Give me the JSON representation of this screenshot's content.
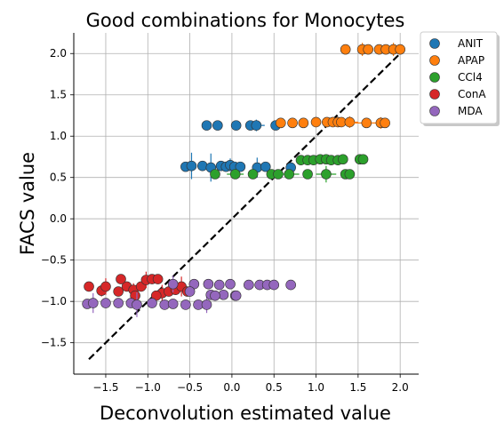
{
  "chart_data": {
    "type": "scatter",
    "title": "Good combinations for Monocytes",
    "xlabel": "Deconvolution estimated value",
    "ylabel": "FACS value",
    "xlim": [
      -1.88,
      2.22
    ],
    "ylim": [
      -1.88,
      2.25
    ],
    "xticks": [
      "−1.5",
      "−1.0",
      "−0.5",
      "0.0",
      "0.5",
      "1.0",
      "1.5",
      "2.0"
    ],
    "xtick_values": [
      -1.5,
      -1.0,
      -0.5,
      0.0,
      0.5,
      1.0,
      1.5,
      2.0
    ],
    "yticks": [
      "−1.5",
      "−1.0",
      "−0.5",
      "0.0",
      "0.5",
      "1.0",
      "1.5",
      "2.0"
    ],
    "ytick_values": [
      -1.5,
      -1.0,
      -0.5,
      0.0,
      0.5,
      1.0,
      1.5,
      2.0
    ],
    "grid": true,
    "legend_position": "outside-top-right",
    "reference_line": {
      "style": "dashed",
      "color": "#000000",
      "from": [
        -1.7,
        -1.7
      ],
      "to": [
        2.05,
        2.05
      ]
    },
    "series": [
      {
        "name": "ANIT",
        "color": "#1f77b4",
        "points": [
          {
            "x": -0.3,
            "y": 1.13,
            "xerr": 0.03,
            "yerr": 0.0
          },
          {
            "x": -0.17,
            "y": 1.13,
            "xerr": 0.04,
            "yerr": 0.05
          },
          {
            "x": 0.05,
            "y": 1.13,
            "xerr": 0.05,
            "yerr": 0.0
          },
          {
            "x": 0.22,
            "y": 1.13,
            "xerr": 0.04,
            "yerr": 0.03
          },
          {
            "x": 0.29,
            "y": 1.13,
            "xerr": 0.1,
            "yerr": 0.07
          },
          {
            "x": 0.52,
            "y": 1.13,
            "xerr": 0.06,
            "yerr": 0.0
          },
          {
            "x": -0.55,
            "y": 0.63,
            "xerr": 0.03,
            "yerr": 0.0
          },
          {
            "x": -0.48,
            "y": 0.64,
            "xerr": 0.04,
            "yerr": 0.16
          },
          {
            "x": -0.35,
            "y": 0.64,
            "xerr": 0.02,
            "yerr": 0.0
          },
          {
            "x": -0.25,
            "y": 0.62,
            "xerr": 0.03,
            "yerr": 0.17
          },
          {
            "x": -0.13,
            "y": 0.64,
            "xerr": 0.05,
            "yerr": 0.0
          },
          {
            "x": -0.07,
            "y": 0.63,
            "xerr": 0.05,
            "yerr": 0.0
          },
          {
            "x": -0.02,
            "y": 0.65,
            "xerr": 0.04,
            "yerr": 0.08
          },
          {
            "x": 0.03,
            "y": 0.63,
            "xerr": 0.04,
            "yerr": 0.0
          },
          {
            "x": 0.1,
            "y": 0.63,
            "xerr": 0.05,
            "yerr": 0.0
          },
          {
            "x": 0.3,
            "y": 0.62,
            "xerr": 0.03,
            "yerr": 0.12
          },
          {
            "x": 0.4,
            "y": 0.63,
            "xerr": 0.02,
            "yerr": 0.0
          },
          {
            "x": 0.7,
            "y": 0.62,
            "xerr": 0.04,
            "yerr": 0.0
          }
        ]
      },
      {
        "name": "APAP",
        "color": "#ff7f0e",
        "points": [
          {
            "x": 1.35,
            "y": 2.05,
            "xerr": 0.02,
            "yerr": 0.0
          },
          {
            "x": 1.55,
            "y": 2.05,
            "xerr": 0.05,
            "yerr": 0.08
          },
          {
            "x": 1.62,
            "y": 2.05,
            "xerr": 0.04,
            "yerr": 0.0
          },
          {
            "x": 1.75,
            "y": 2.05,
            "xerr": 0.05,
            "yerr": 0.05
          },
          {
            "x": 1.83,
            "y": 2.05,
            "xerr": 0.04,
            "yerr": 0.0
          },
          {
            "x": 1.92,
            "y": 2.05,
            "xerr": 0.04,
            "yerr": 0.08
          },
          {
            "x": 2.0,
            "y": 2.05,
            "xerr": 0.06,
            "yerr": 0.0
          },
          {
            "x": 0.58,
            "y": 1.16,
            "xerr": 0.02,
            "yerr": 0.0
          },
          {
            "x": 0.72,
            "y": 1.16,
            "xerr": 0.03,
            "yerr": 0.05
          },
          {
            "x": 0.85,
            "y": 1.16,
            "xerr": 0.03,
            "yerr": 0.0
          },
          {
            "x": 1.0,
            "y": 1.17,
            "xerr": 0.03,
            "yerr": 0.05
          },
          {
            "x": 1.13,
            "y": 1.17,
            "xerr": 0.04,
            "yerr": 0.0
          },
          {
            "x": 1.2,
            "y": 1.17,
            "xerr": 0.03,
            "yerr": 0.04
          },
          {
            "x": 1.26,
            "y": 1.17,
            "xerr": 0.03,
            "yerr": 0.0
          },
          {
            "x": 1.3,
            "y": 1.17,
            "xerr": 0.04,
            "yerr": 0.0
          },
          {
            "x": 1.4,
            "y": 1.17,
            "xerr": 0.1,
            "yerr": 0.07
          },
          {
            "x": 1.6,
            "y": 1.16,
            "xerr": 0.15,
            "yerr": 0.05
          },
          {
            "x": 1.77,
            "y": 1.16,
            "xerr": 0.03,
            "yerr": 0.07
          },
          {
            "x": 1.82,
            "y": 1.16,
            "xerr": 0.03,
            "yerr": 0.0
          }
        ]
      },
      {
        "name": "CCl4",
        "color": "#2ca02c",
        "points": [
          {
            "x": 0.82,
            "y": 0.71,
            "xerr": 0.04,
            "yerr": 0.0
          },
          {
            "x": 0.9,
            "y": 0.71,
            "xerr": 0.04,
            "yerr": 0.0
          },
          {
            "x": 0.97,
            "y": 0.71,
            "xerr": 0.05,
            "yerr": 0.05
          },
          {
            "x": 1.05,
            "y": 0.72,
            "xerr": 0.04,
            "yerr": 0.0
          },
          {
            "x": 1.12,
            "y": 0.72,
            "xerr": 0.03,
            "yerr": 0.0
          },
          {
            "x": 1.18,
            "y": 0.71,
            "xerr": 0.04,
            "yerr": 0.0
          },
          {
            "x": 1.26,
            "y": 0.71,
            "xerr": 0.04,
            "yerr": 0.0
          },
          {
            "x": 1.32,
            "y": 0.72,
            "xerr": 0.03,
            "yerr": 0.0
          },
          {
            "x": 1.52,
            "y": 0.72,
            "xerr": 0.03,
            "yerr": 0.06
          },
          {
            "x": 1.56,
            "y": 0.72,
            "xerr": 0.02,
            "yerr": 0.0
          },
          {
            "x": -0.2,
            "y": 0.54,
            "xerr": 0.03,
            "yerr": 0.0
          },
          {
            "x": 0.04,
            "y": 0.54,
            "xerr": 0.1,
            "yerr": 0.0
          },
          {
            "x": 0.25,
            "y": 0.54,
            "xerr": 0.04,
            "yerr": 0.06
          },
          {
            "x": 0.47,
            "y": 0.54,
            "xerr": 0.03,
            "yerr": 0.0
          },
          {
            "x": 0.55,
            "y": 0.54,
            "xerr": 0.03,
            "yerr": 0.05
          },
          {
            "x": 0.68,
            "y": 0.54,
            "xerr": 0.12,
            "yerr": 0.0
          },
          {
            "x": 0.9,
            "y": 0.54,
            "xerr": 0.03,
            "yerr": 0.0
          },
          {
            "x": 1.12,
            "y": 0.54,
            "xerr": 0.12,
            "yerr": 0.1
          },
          {
            "x": 1.35,
            "y": 0.54,
            "xerr": 0.04,
            "yerr": 0.0
          },
          {
            "x": 1.4,
            "y": 0.54,
            "xerr": 0.03,
            "yerr": 0.0
          }
        ]
      },
      {
        "name": "ConA",
        "color": "#d62728",
        "points": [
          {
            "x": -1.7,
            "y": -0.82,
            "xerr": 0.02,
            "yerr": 0.0
          },
          {
            "x": -1.55,
            "y": -0.87,
            "xerr": 0.04,
            "yerr": 0.07
          },
          {
            "x": -1.5,
            "y": -0.82,
            "xerr": 0.03,
            "yerr": 0.1
          },
          {
            "x": -1.35,
            "y": -0.88,
            "xerr": 0.04,
            "yerr": 0.0
          },
          {
            "x": -1.25,
            "y": -0.82,
            "xerr": 0.05,
            "yerr": 0.0
          },
          {
            "x": -1.17,
            "y": -0.86,
            "xerr": 0.04,
            "yerr": 0.08
          },
          {
            "x": -1.08,
            "y": -0.82,
            "xerr": 0.03,
            "yerr": 0.0
          },
          {
            "x": -1.02,
            "y": -0.74,
            "xerr": 0.03,
            "yerr": 0.1
          },
          {
            "x": -0.95,
            "y": -0.73,
            "xerr": 0.06,
            "yerr": 0.0
          },
          {
            "x": -0.88,
            "y": -0.73,
            "xerr": 0.04,
            "yerr": 0.0
          },
          {
            "x": -0.83,
            "y": -0.9,
            "xerr": 0.03,
            "yerr": 0.1
          },
          {
            "x": -0.75,
            "y": -0.88,
            "xerr": 0.04,
            "yerr": 0.0
          },
          {
            "x": -0.67,
            "y": -0.86,
            "xerr": 0.04,
            "yerr": 0.0
          },
          {
            "x": -0.6,
            "y": -0.82,
            "xerr": 0.03,
            "yerr": 0.12
          },
          {
            "x": -0.53,
            "y": -0.88,
            "xerr": 0.05,
            "yerr": 0.0
          },
          {
            "x": -1.32,
            "y": -0.73,
            "xerr": 0.03,
            "yerr": 0.0
          },
          {
            "x": -0.9,
            "y": -0.93,
            "xerr": 0.04,
            "yerr": 0.0
          },
          {
            "x": -1.15,
            "y": -0.93,
            "xerr": 0.04,
            "yerr": 0.0
          }
        ]
      },
      {
        "name": "MDA",
        "color": "#9467bd",
        "points": [
          {
            "x": -1.72,
            "y": -1.03,
            "xerr": 0.02,
            "yerr": 0.0
          },
          {
            "x": -1.65,
            "y": -1.02,
            "xerr": 0.04,
            "yerr": 0.12
          },
          {
            "x": -1.5,
            "y": -1.02,
            "xerr": 0.03,
            "yerr": 0.0
          },
          {
            "x": -1.35,
            "y": -1.02,
            "xerr": 0.04,
            "yerr": 0.0
          },
          {
            "x": -1.2,
            "y": -1.02,
            "xerr": 0.03,
            "yerr": 0.0
          },
          {
            "x": -1.13,
            "y": -1.04,
            "xerr": 0.03,
            "yerr": 0.15
          },
          {
            "x": -0.95,
            "y": -1.02,
            "xerr": 0.04,
            "yerr": 0.0
          },
          {
            "x": -0.8,
            "y": -1.04,
            "xerr": 0.05,
            "yerr": 0.0
          },
          {
            "x": -0.7,
            "y": -1.03,
            "xerr": 0.04,
            "yerr": 0.0
          },
          {
            "x": -0.55,
            "y": -1.04,
            "xerr": 0.04,
            "yerr": 0.0
          },
          {
            "x": -0.4,
            "y": -1.04,
            "xerr": 0.05,
            "yerr": 0.0
          },
          {
            "x": -0.3,
            "y": -1.04,
            "xerr": 0.03,
            "yerr": 0.1
          },
          {
            "x": -0.7,
            "y": -0.79,
            "xerr": 0.03,
            "yerr": 0.1
          },
          {
            "x": -0.45,
            "y": -0.79,
            "xerr": 0.04,
            "yerr": 0.0
          },
          {
            "x": -0.28,
            "y": -0.79,
            "xerr": 0.04,
            "yerr": 0.0
          },
          {
            "x": -0.15,
            "y": -0.8,
            "xerr": 0.05,
            "yerr": 0.0
          },
          {
            "x": -0.02,
            "y": -0.79,
            "xerr": 0.04,
            "yerr": 0.0
          },
          {
            "x": 0.2,
            "y": -0.8,
            "xerr": 0.05,
            "yerr": 0.0
          },
          {
            "x": 0.33,
            "y": -0.8,
            "xerr": 0.04,
            "yerr": 0.0
          },
          {
            "x": 0.42,
            "y": -0.8,
            "xerr": 0.04,
            "yerr": 0.0
          },
          {
            "x": 0.5,
            "y": -0.8,
            "xerr": 0.03,
            "yerr": 0.0
          },
          {
            "x": 0.7,
            "y": -0.8,
            "xerr": 0.03,
            "yerr": 0.0
          },
          {
            "x": -0.25,
            "y": -0.92,
            "xerr": 0.05,
            "yerr": 0.0
          },
          {
            "x": -0.1,
            "y": -0.92,
            "xerr": 0.04,
            "yerr": 0.0
          },
          {
            "x": 0.04,
            "y": -0.93,
            "xerr": 0.04,
            "yerr": 0.0
          },
          {
            "x": 0.05,
            "y": -0.93,
            "xerr": 0.03,
            "yerr": 0.0
          },
          {
            "x": -0.2,
            "y": -0.93,
            "xerr": 0.04,
            "yerr": 0.0
          },
          {
            "x": -0.5,
            "y": -0.88,
            "xerr": 0.03,
            "yerr": 0.0
          }
        ]
      }
    ]
  }
}
